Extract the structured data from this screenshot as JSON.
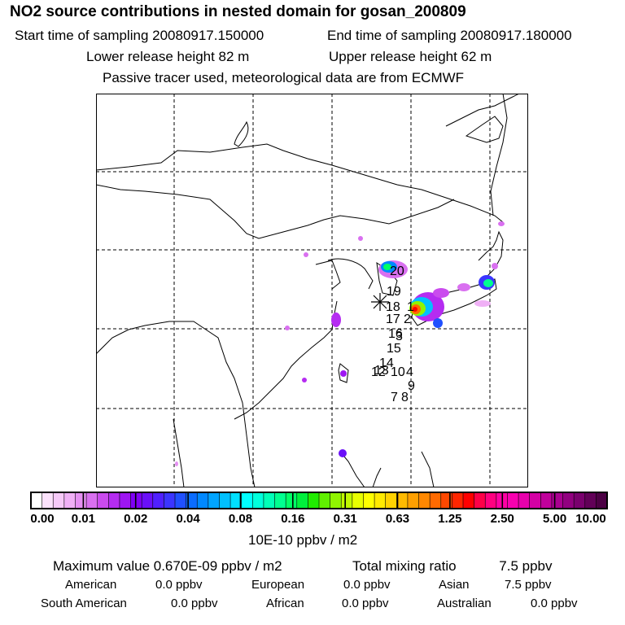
{
  "header": {
    "title": "NO2 source contributions in nested domain for gosan_200809",
    "start": "Start time of sampling 20080917.150000",
    "end": "End time of sampling 20080917.180000",
    "lower": "Lower release height   82 m",
    "upper": "Upper release height   62 m",
    "note": "Passive tracer used, meteorological data are from ECMWF"
  },
  "map": {
    "station_marker": "asterisk-icon",
    "track_labels": [
      "20",
      "19",
      "18",
      "17",
      "16",
      "15",
      "14",
      "13",
      "12",
      "10",
      "4",
      "9",
      "7",
      "8",
      "1",
      "2",
      "3"
    ]
  },
  "colorbar": {
    "ticks": [
      "0.00",
      "0.01",
      "0.02",
      "0.04",
      "0.08",
      "0.16",
      "0.31",
      "0.63",
      "1.25",
      "2.50",
      "5.00",
      "10.00"
    ],
    "colors": [
      "#ffffff",
      "#fbe1fb",
      "#f6c9f8",
      "#f0b0f6",
      "#e690f3",
      "#d970f0",
      "#ca4bee",
      "#b52cf1",
      "#9e16f2",
      "#8000f6",
      "#6a10f8",
      "#5020ff",
      "#3b35ff",
      "#2050ff",
      "#0a6cff",
      "#0088ff",
      "#00a4ff",
      "#00c0ff",
      "#00e0ff",
      "#00ffff",
      "#00ffdc",
      "#00ffb8",
      "#00ff90",
      "#00ff66",
      "#00f03c",
      "#20ec00",
      "#60f000",
      "#90f400",
      "#c0f800",
      "#e8ff00",
      "#ffff00",
      "#ffea00",
      "#ffd200",
      "#ffba00",
      "#ffa000",
      "#ff8800",
      "#ff6a00",
      "#ff4800",
      "#ff2600",
      "#ff0000",
      "#ff0048",
      "#ff0080",
      "#ff00a4",
      "#f800b0",
      "#e800ac",
      "#d400a4",
      "#c0009c",
      "#aa0090",
      "#920080",
      "#7a006e",
      "#620058",
      "#4c0044"
    ],
    "unit": "10E-10 ppbv / m2"
  },
  "summary": {
    "max_label": "Maximum value  0.670E-09 ppbv / m2",
    "total_label": "Total mixing ratio",
    "total_value": "7.5 ppbv",
    "regions": [
      {
        "name": "American",
        "value": "0.0 ppbv"
      },
      {
        "name": "European",
        "value": "0.0 ppbv"
      },
      {
        "name": "Asian",
        "value": "7.5 ppbv"
      },
      {
        "name": "South American",
        "value": "0.0 ppbv"
      },
      {
        "name": "African",
        "value": "0.0 ppbv"
      },
      {
        "name": "Australian",
        "value": "0.0 ppbv"
      }
    ]
  }
}
